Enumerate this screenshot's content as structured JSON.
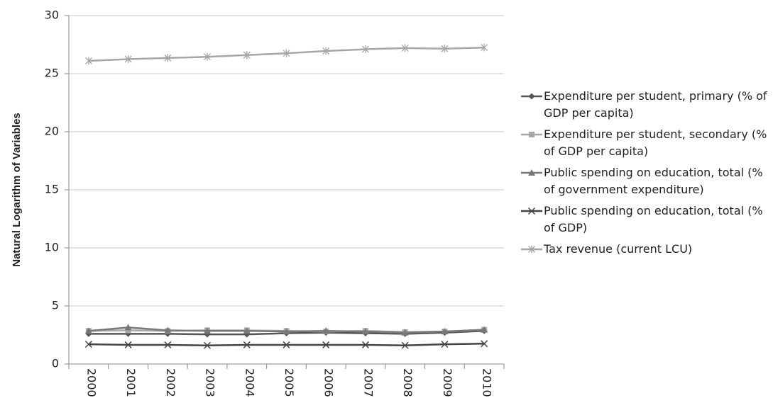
{
  "chart_data": {
    "type": "line",
    "y_label": "Natural Logarithm of Variables",
    "categories": [
      "2000",
      "2001",
      "2002",
      "2003",
      "2004",
      "2005",
      "2006",
      "2007",
      "2008",
      "2009",
      "2010"
    ],
    "ylim": [
      0,
      30
    ],
    "yticks": [
      0,
      5,
      10,
      15,
      20,
      25,
      30
    ],
    "grid": true,
    "series": [
      {
        "name": "Expenditure per student, primary (% of GDP per capita)",
        "color": "#555555",
        "marker": "diamond",
        "values": [
          2.6,
          2.6,
          2.6,
          2.55,
          2.55,
          2.65,
          2.7,
          2.65,
          2.6,
          2.7,
          2.85
        ]
      },
      {
        "name": "Expenditure per student, secondary (% of GDP per capita)",
        "color": "#a6a6a6",
        "marker": "square",
        "values": [
          2.85,
          2.9,
          2.85,
          2.9,
          2.9,
          2.85,
          2.8,
          2.85,
          2.75,
          2.8,
          2.95
        ]
      },
      {
        "name": "Public spending on education, total (% of government expenditure)",
        "color": "#787878",
        "marker": "triangle",
        "values": [
          2.85,
          3.15,
          2.9,
          2.85,
          2.85,
          2.8,
          2.85,
          2.8,
          2.7,
          2.8,
          2.95
        ]
      },
      {
        "name": "Public spending on education, total (% of GDP)",
        "color": "#444444",
        "marker": "x",
        "values": [
          1.7,
          1.65,
          1.65,
          1.6,
          1.65,
          1.65,
          1.65,
          1.65,
          1.6,
          1.7,
          1.75
        ]
      },
      {
        "name": "Tax revenue (current LCU)",
        "color": "#a6a6a6",
        "marker": "star",
        "values": [
          26.1,
          26.25,
          26.35,
          26.45,
          26.6,
          26.75,
          26.95,
          27.1,
          27.2,
          27.15,
          27.25
        ]
      }
    ]
  }
}
